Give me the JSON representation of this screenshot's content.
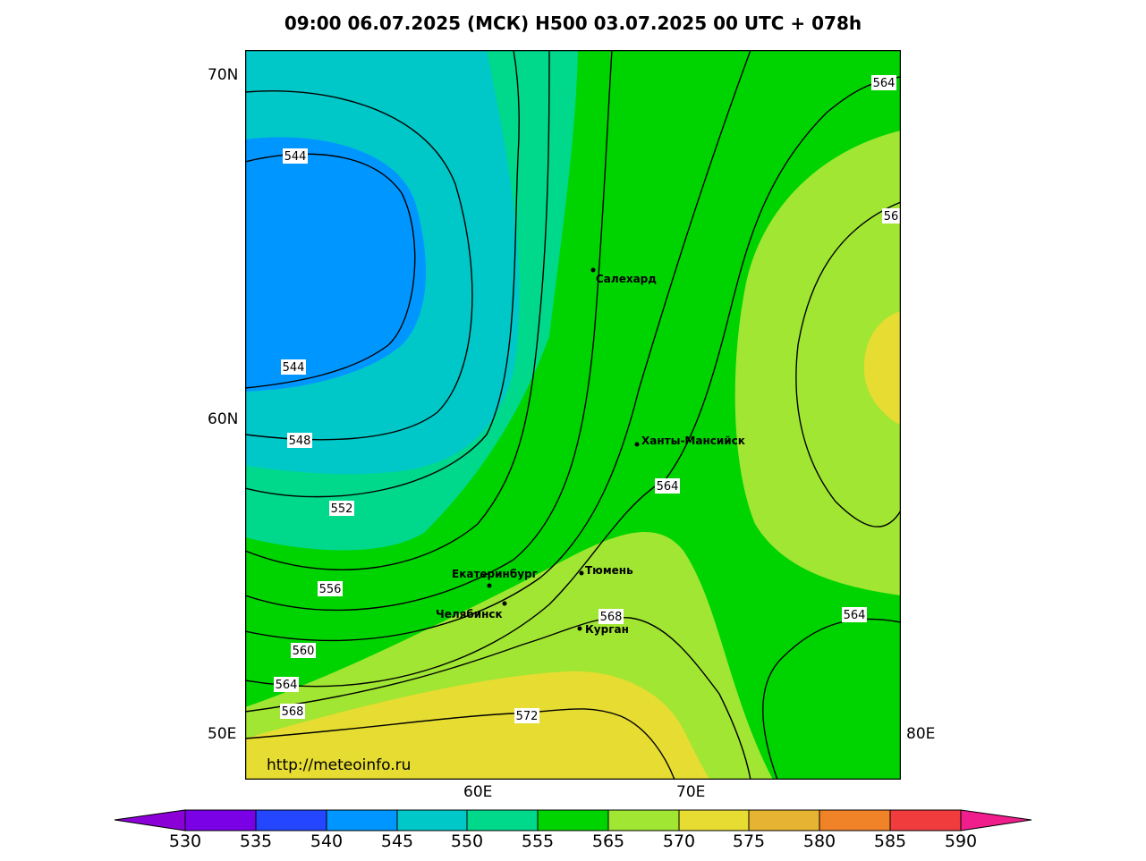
{
  "title": "09:00 06.07.2025 (МСК) H500  03.07.2025 00 UTC + 078h",
  "axes": {
    "lat_labels": [
      "70N",
      "60N",
      "50E"
    ],
    "lon_labels": [
      "60E",
      "70E",
      "80E"
    ]
  },
  "watermark": "http://meteoinfo.ru",
  "cities": [
    {
      "name": "Салехард"
    },
    {
      "name": "Ханты-Мансийск"
    },
    {
      "name": "Екатеринбург"
    },
    {
      "name": "Тюмень"
    },
    {
      "name": "Челябинск"
    },
    {
      "name": "Курган"
    }
  ],
  "contour_labels": {
    "c544a": "544",
    "c544b": "544",
    "c548": "548",
    "c552": "552",
    "c556": "556",
    "c560": "560",
    "c564a": "564",
    "c564b": "564",
    "c564c": "564",
    "c564d": "564",
    "c568a": "568",
    "c568b": "568",
    "c572": "572",
    "c56": "56"
  },
  "colorbar": {
    "levels": [
      "530",
      "535",
      "540",
      "545",
      "550",
      "555",
      "565",
      "570",
      "575",
      "580",
      "585",
      "590"
    ],
    "colors": [
      "#8c00d8",
      "#7a00e6",
      "#2446ff",
      "#0096ff",
      "#00c8c8",
      "#00d88c",
      "#00d400",
      "#a0e632",
      "#e6dc32",
      "#e6b432",
      "#f08228",
      "#f03c3c",
      "#f01e8c"
    ]
  }
}
